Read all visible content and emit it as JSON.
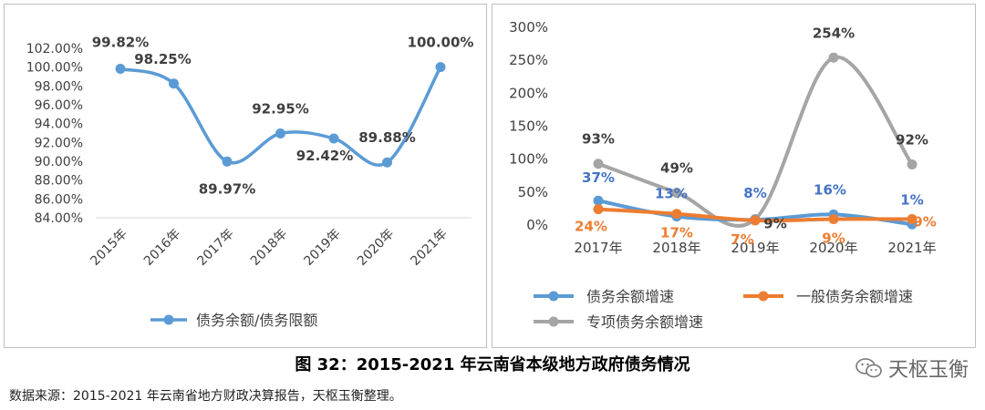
{
  "chart_data": [
    {
      "type": "line",
      "categories": [
        "2015年",
        "2016年",
        "2017年",
        "2018年",
        "2019年",
        "2020年",
        "2021年"
      ],
      "series": [
        {
          "name": "债务余额/债务限额",
          "values": [
            99.82,
            98.25,
            89.97,
            92.95,
            92.42,
            89.88,
            100.0
          ],
          "labels": [
            "99.82%",
            "98.25%",
            "89.97%",
            "92.95%",
            "92.42%",
            "89.88%",
            "100.00%"
          ],
          "color": "#5b9bd5"
        }
      ],
      "y_ticks": [
        "84.00%",
        "86.00%",
        "88.00%",
        "90.00%",
        "92.00%",
        "94.00%",
        "96.00%",
        "98.00%",
        "100.00%",
        "102.00%"
      ],
      "ylim": [
        84,
        102
      ],
      "grid": false,
      "legend_position": "bottom"
    },
    {
      "type": "line",
      "categories": [
        "2017年",
        "2018年",
        "2019年",
        "2020年",
        "2021年"
      ],
      "series": [
        {
          "name": "债务余额增速",
          "values": [
            37,
            13,
            8,
            16,
            1
          ],
          "labels": [
            "37%",
            "13%",
            "8%",
            "16%",
            "1%"
          ],
          "color": "#5b9bd5"
        },
        {
          "name": "一般债务余额增速",
          "values": [
            24,
            17,
            7,
            9,
            9
          ],
          "labels": [
            "24%",
            "17%",
            "7%",
            "9%",
            "9%"
          ],
          "color": "#ed7d31"
        },
        {
          "name": "专项债务余额增速",
          "values": [
            93,
            49,
            9,
            254,
            92
          ],
          "labels": [
            "93%",
            "49%",
            "9%",
            "254%",
            "92%"
          ],
          "color": "#a5a5a5"
        }
      ],
      "y_ticks": [
        "0%",
        "50%",
        "100%",
        "150%",
        "200%",
        "250%",
        "300%"
      ],
      "ylim": [
        0,
        300
      ],
      "grid": false,
      "legend_position": "bottom"
    }
  ],
  "caption": "图 32：2015-2021 年云南省本级地方政府债务情况",
  "source": "数据来源：2015-2021 年云南省地方财政决算报告，天枢玉衡整理。",
  "brand": "天枢玉衡"
}
